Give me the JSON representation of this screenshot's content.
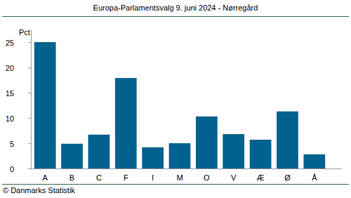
{
  "chart_data": {
    "type": "bar",
    "title": "Europa-Parlamentsvalg 9. juni 2024 - Nørregård",
    "ylabel": "Pct.",
    "source": "© Danmarks Statistik",
    "categories": [
      "A",
      "B",
      "C",
      "F",
      "I",
      "M",
      "O",
      "V",
      "Æ",
      "Ø",
      "Å"
    ],
    "values": [
      25.0,
      4.9,
      6.7,
      17.9,
      4.2,
      5.0,
      10.3,
      6.8,
      5.7,
      11.3,
      2.8
    ],
    "color": "#00628f",
    "ylim": [
      0,
      27.5
    ],
    "yticks": [
      0,
      5,
      10,
      15,
      20,
      25
    ],
    "grid": false
  }
}
